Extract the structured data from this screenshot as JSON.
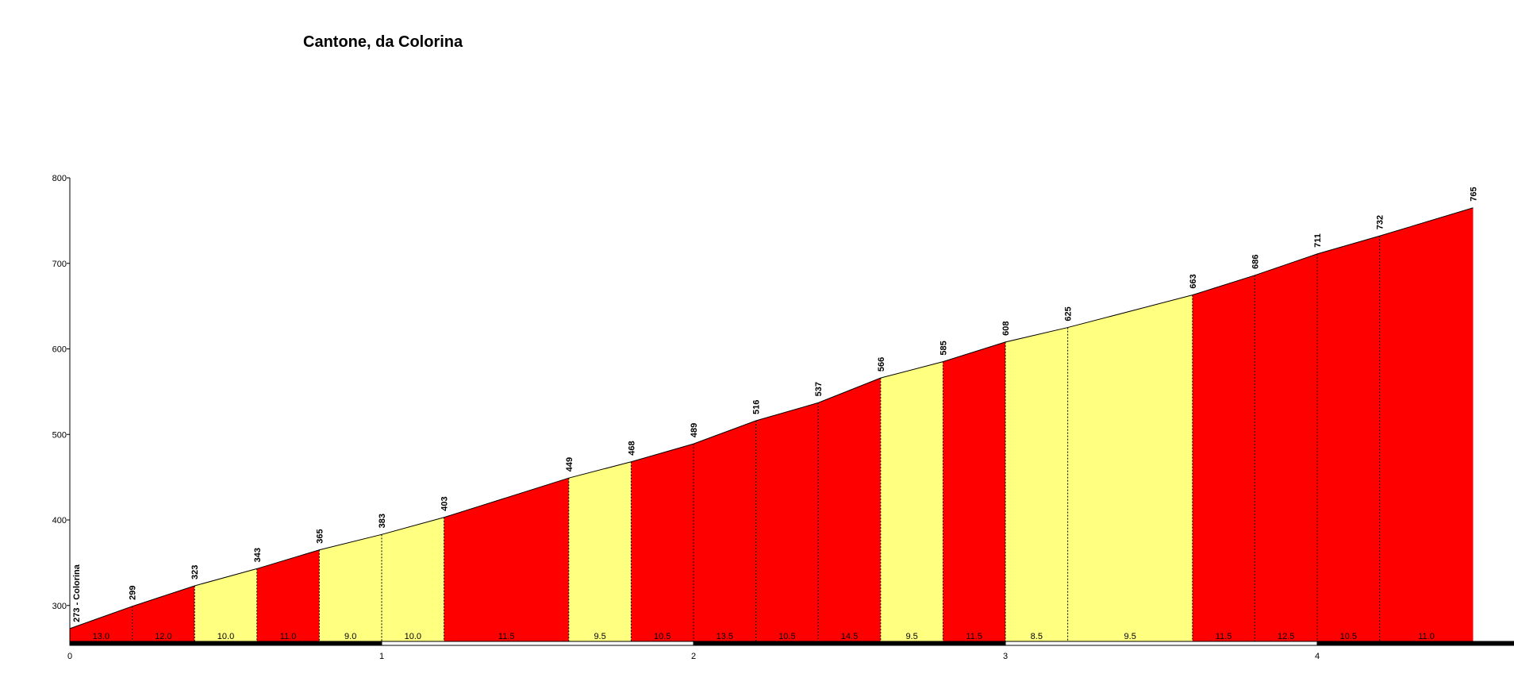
{
  "chart_data": {
    "type": "area",
    "title": "Cantone, da Colorina",
    "xlabel": "",
    "ylabel": "",
    "xlim": [
      0,
      4.5
    ],
    "ylim": [
      255,
      800
    ],
    "x_ticks": [
      "0",
      "1",
      "2",
      "3",
      "4"
    ],
    "y_ticks": [
      "300",
      "400",
      "500",
      "600",
      "700",
      "800"
    ],
    "start_label": "273 - Colorina",
    "x": [
      0,
      0.2,
      0.4,
      0.6,
      0.8,
      1.0,
      1.2,
      1.6,
      1.8,
      2.0,
      2.2,
      2.4,
      2.6,
      2.8,
      3.0,
      3.2,
      3.6,
      3.8,
      4.0,
      4.2,
      4.5
    ],
    "elevations": [
      273,
      299,
      323,
      343,
      365,
      383,
      403,
      449,
      468,
      489,
      516,
      537,
      566,
      585,
      608,
      625,
      663,
      686,
      711,
      732,
      765
    ],
    "elevation_labels": [
      "299",
      "323",
      "343",
      "365",
      "383",
      "403",
      "449",
      "468",
      "489",
      "516",
      "537",
      "566",
      "585",
      "608",
      "625",
      "663",
      "686",
      "711",
      "732",
      "765"
    ],
    "gradients": [
      "13.0",
      "12.0",
      "10.0",
      "11.0",
      "9.0",
      "10.0",
      "11.5",
      "9.5",
      "10.5",
      "13.5",
      "10.5",
      "14.5",
      "9.5",
      "11.5",
      "8.5",
      "9.5",
      "11.5",
      "12.5",
      "10.5",
      "11.0"
    ],
    "segment_colors": [
      "red",
      "red",
      "yellow",
      "red",
      "yellow",
      "yellow",
      "red",
      "yellow",
      "red",
      "red",
      "red",
      "red",
      "yellow",
      "red",
      "yellow",
      "yellow",
      "red",
      "red",
      "red",
      "red"
    ],
    "colors": {
      "red": "#ff0000",
      "yellow": "#ffff80"
    }
  }
}
